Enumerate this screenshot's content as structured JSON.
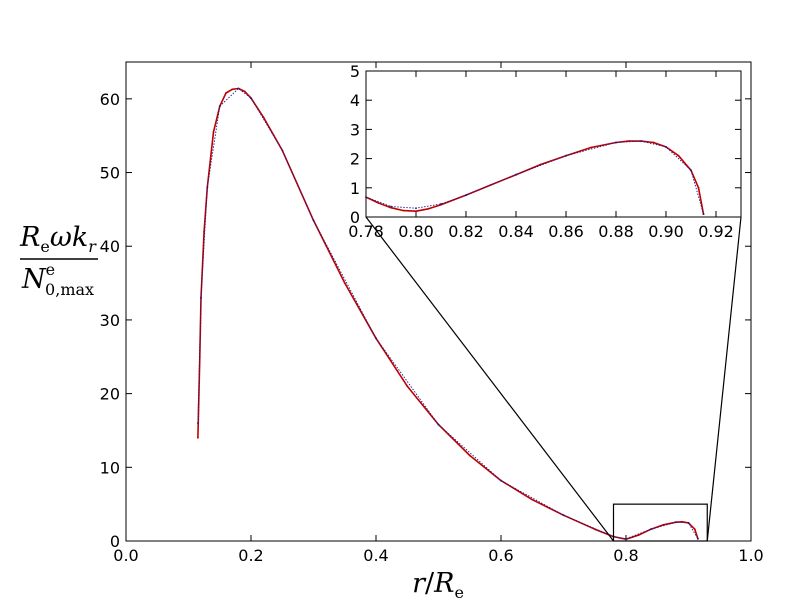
{
  "chart_data": [
    {
      "type": "scatter",
      "title": "",
      "xlabel": {
        "main": "r",
        "sep": "/",
        "den": "R",
        "den_sub": "e"
      },
      "ylabel": {
        "num_R": "R",
        "num_R_sub": "e",
        "num_rest": "ωk",
        "num_rest_sub": "r",
        "den_N": "N",
        "den_N_sup": "e",
        "den_N_sub": "0,max"
      },
      "xlim": [
        0.0,
        1.0
      ],
      "ylim": [
        0,
        65
      ],
      "x_ticks": [
        "0.0",
        "0.2",
        "0.4",
        "0.6",
        "0.8",
        "1.0"
      ],
      "x_tick_values": [
        0.0,
        0.2,
        0.4,
        0.6,
        0.8,
        1.0
      ],
      "y_ticks": [
        "0",
        "10",
        "20",
        "30",
        "40",
        "50",
        "60"
      ],
      "y_tick_values": [
        0,
        10,
        20,
        30,
        40,
        50,
        60
      ],
      "grid": false,
      "series": [
        {
          "color": "#c00000",
          "x": [
            0.115,
            0.118,
            0.12,
            0.125,
            0.13,
            0.14,
            0.15,
            0.16,
            0.17,
            0.18,
            0.19,
            0.2,
            0.22,
            0.25,
            0.3,
            0.35,
            0.4,
            0.45,
            0.5,
            0.55,
            0.6,
            0.65,
            0.7,
            0.75,
            0.78,
            0.8,
            0.82,
            0.84,
            0.86,
            0.88,
            0.89,
            0.9,
            0.91,
            0.915
          ],
          "y": [
            14,
            25,
            33,
            42,
            48,
            55.5,
            59,
            60.8,
            61.3,
            61.4,
            61.0,
            60.1,
            57.5,
            53,
            43.5,
            35,
            27.5,
            21,
            15.8,
            11.6,
            8.2,
            5.6,
            3.5,
            1.6,
            0.6,
            0.25,
            0.8,
            1.6,
            2.2,
            2.55,
            2.6,
            2.45,
            1.6,
            0.3
          ]
        },
        {
          "color": "#1a1a8c",
          "x": [
            0.115,
            0.12,
            0.13,
            0.15,
            0.18,
            0.2,
            0.25,
            0.3,
            0.4,
            0.5,
            0.6,
            0.7,
            0.78,
            0.8,
            0.84,
            0.88,
            0.9,
            0.915
          ],
          "y": [
            16,
            33,
            48,
            59,
            61.4,
            60.1,
            53,
            43.5,
            27.5,
            15.8,
            8.2,
            3.5,
            0.6,
            0.3,
            1.6,
            2.55,
            2.45,
            0.3
          ]
        }
      ],
      "zoom_box": {
        "x": [
          0.78,
          0.93
        ],
        "y": [
          0,
          5
        ]
      }
    },
    {
      "type": "scatter",
      "title": "",
      "xlim": [
        0.78,
        0.93
      ],
      "ylim": [
        0,
        5
      ],
      "x_ticks": [
        "0.78",
        "0.80",
        "0.82",
        "0.84",
        "0.86",
        "0.88",
        "0.90",
        "0.92"
      ],
      "x_tick_values": [
        0.78,
        0.8,
        0.82,
        0.84,
        0.86,
        0.88,
        0.9,
        0.92
      ],
      "y_ticks": [
        "0",
        "1",
        "2",
        "3",
        "4",
        "5"
      ],
      "y_tick_values": [
        0,
        1,
        2,
        3,
        4,
        5
      ],
      "grid": false,
      "series": [
        {
          "color": "#c00000",
          "x": [
            0.78,
            0.785,
            0.79,
            0.795,
            0.8,
            0.805,
            0.81,
            0.82,
            0.83,
            0.84,
            0.85,
            0.86,
            0.87,
            0.88,
            0.885,
            0.89,
            0.895,
            0.9,
            0.905,
            0.91,
            0.913,
            0.915
          ],
          "y": [
            0.68,
            0.48,
            0.32,
            0.22,
            0.2,
            0.28,
            0.42,
            0.75,
            1.1,
            1.45,
            1.8,
            2.1,
            2.38,
            2.55,
            2.6,
            2.6,
            2.55,
            2.4,
            2.1,
            1.6,
            1.0,
            0.1
          ]
        },
        {
          "color": "#1a1a8c",
          "x": [
            0.78,
            0.79,
            0.8,
            0.81,
            0.82,
            0.84,
            0.86,
            0.88,
            0.89,
            0.9,
            0.91,
            0.915
          ],
          "y": [
            0.68,
            0.36,
            0.3,
            0.45,
            0.75,
            1.45,
            2.1,
            2.55,
            2.6,
            2.4,
            1.6,
            0.1
          ]
        }
      ]
    }
  ]
}
